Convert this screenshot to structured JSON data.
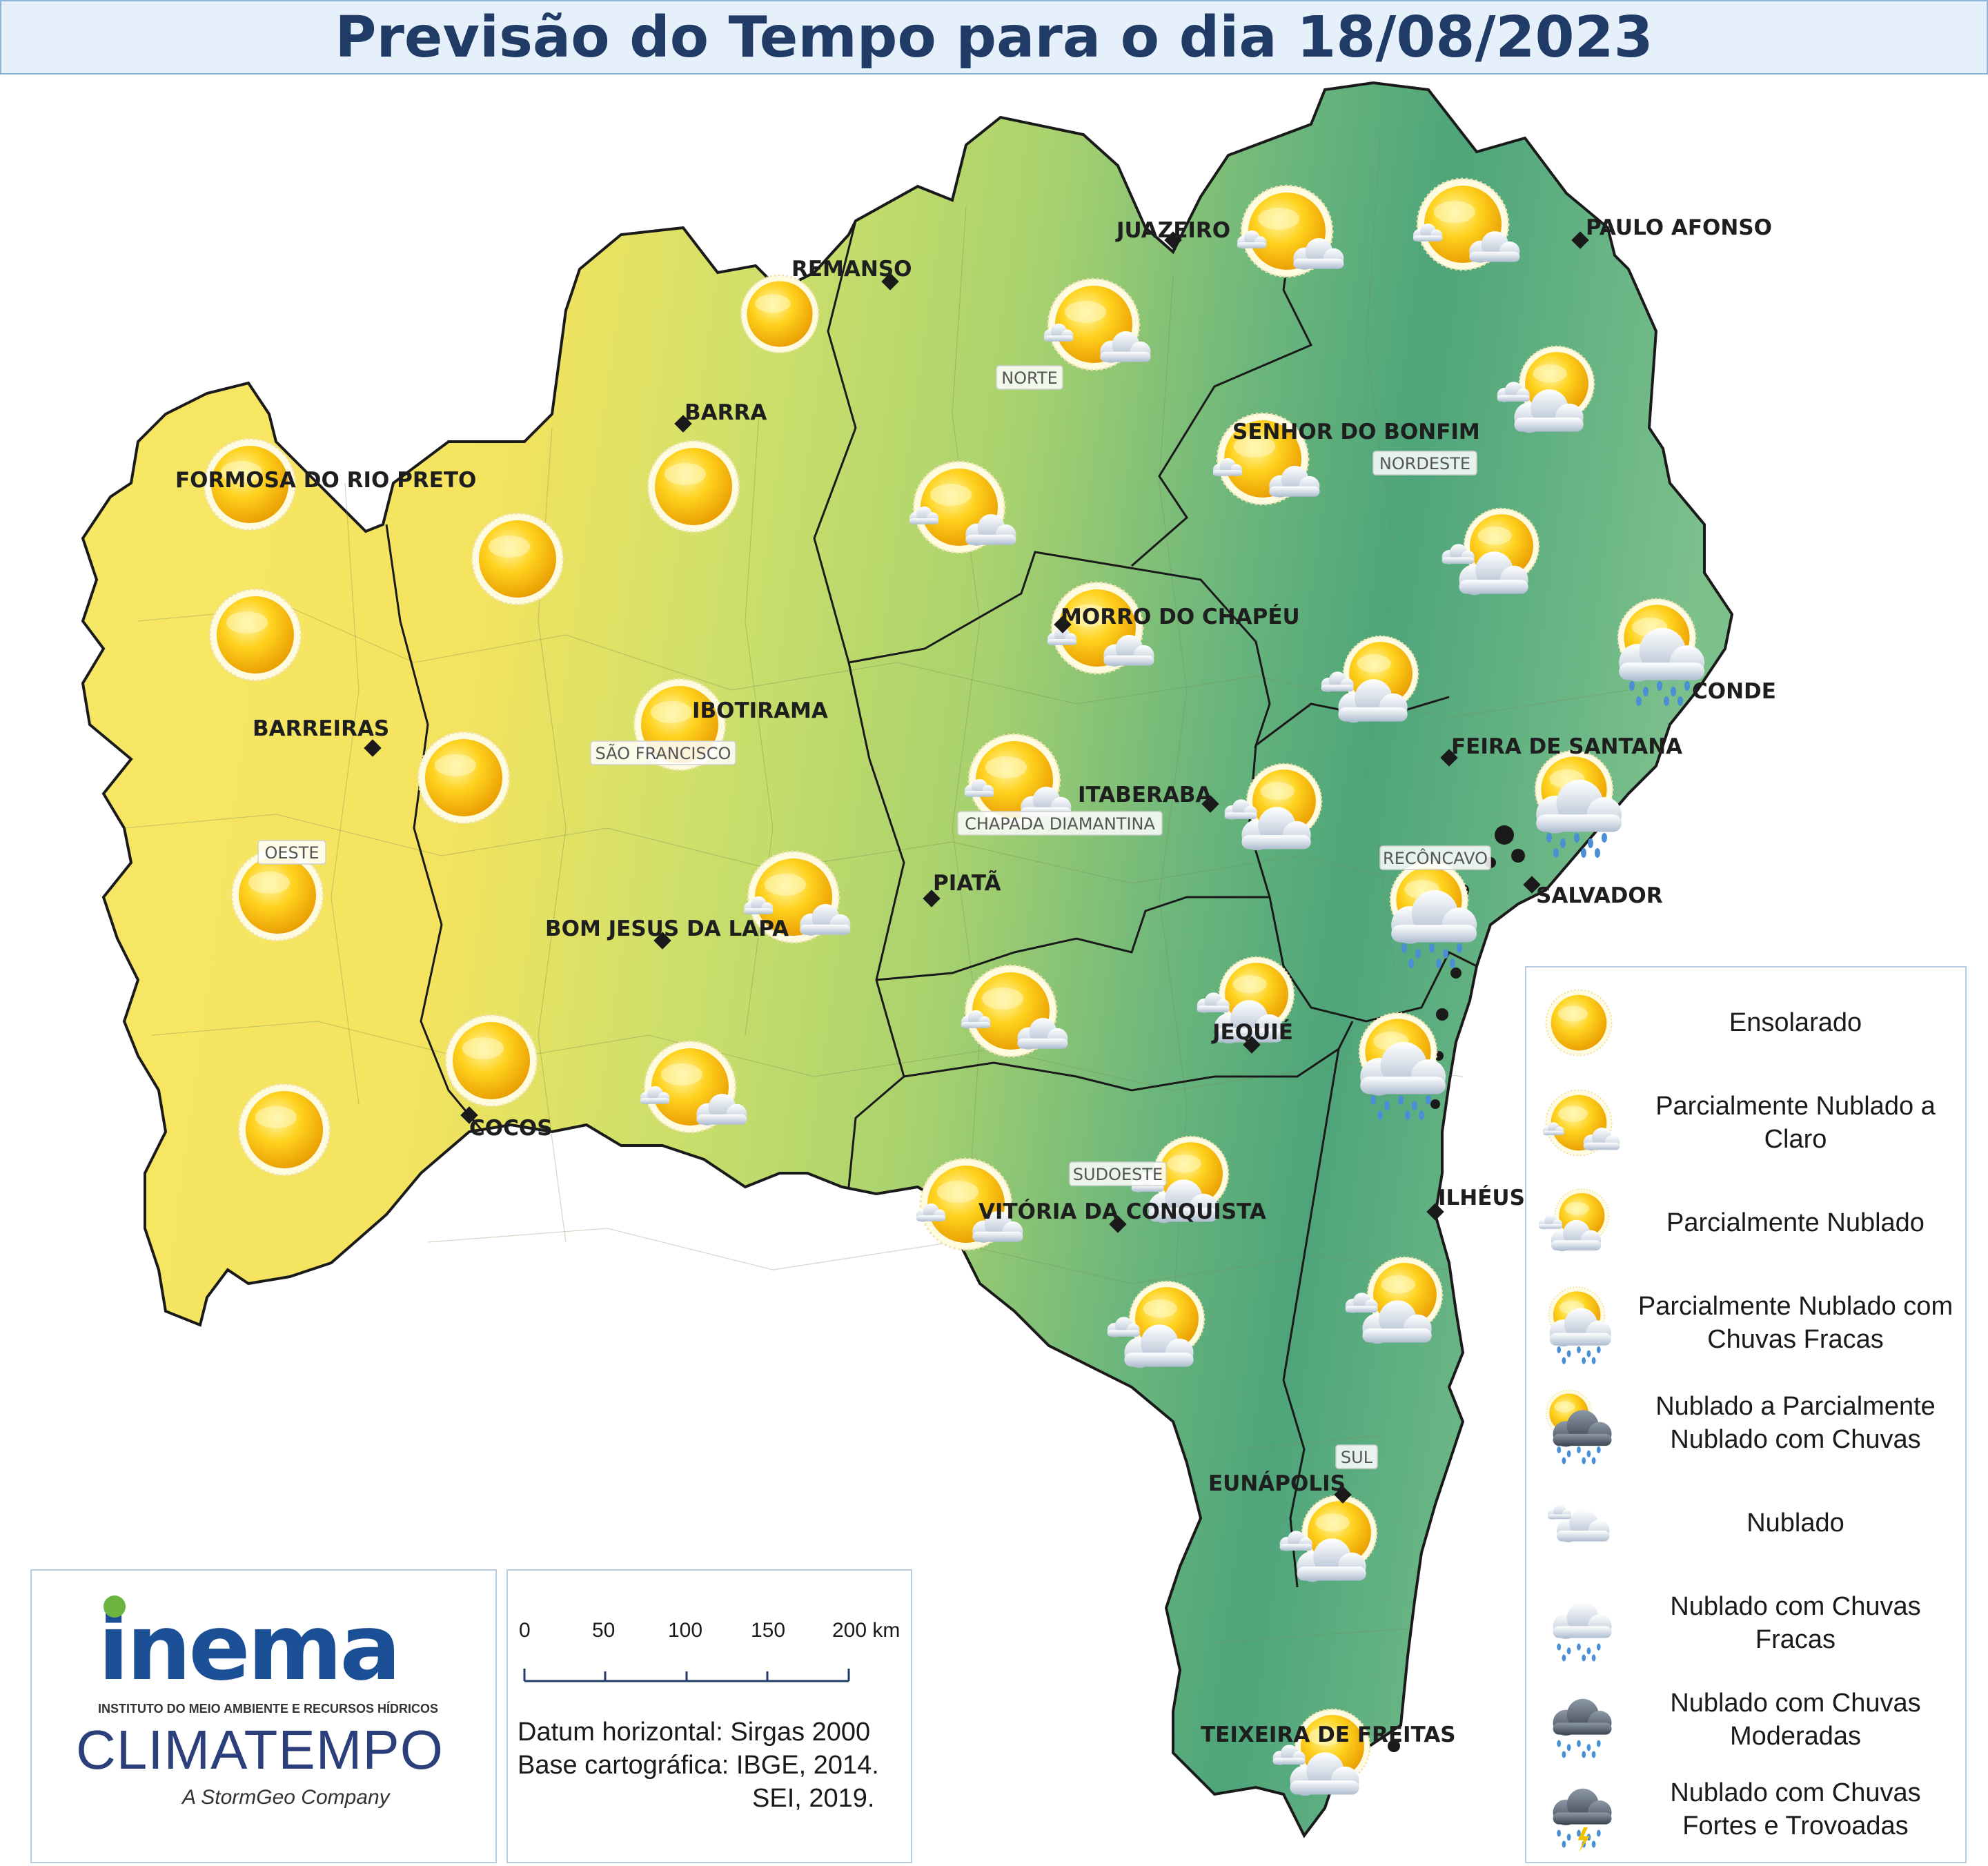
{
  "title": "Previsão do Tempo para o dia 18/08/2023",
  "cities": [
    {
      "name": "JUAZEIRO"
    },
    {
      "name": "REMANSO"
    },
    {
      "name": "PAULO AFONSO"
    },
    {
      "name": "BARRA"
    },
    {
      "name": "SENHOR DO BONFIM"
    },
    {
      "name": "FORMOSA DO RIO PRETO"
    },
    {
      "name": "MORRO DO CHAPÉU"
    },
    {
      "name": "IBOTIRAMA"
    },
    {
      "name": "CONDE"
    },
    {
      "name": "BARREIRAS"
    },
    {
      "name": "FEIRA DE SANTANA"
    },
    {
      "name": "ITABERABA"
    },
    {
      "name": "PIATÃ"
    },
    {
      "name": "SALVADOR"
    },
    {
      "name": "BOM JESUS DA LAPA"
    },
    {
      "name": "JEQUIÉ"
    },
    {
      "name": "COCOS"
    },
    {
      "name": "ILHÉUS"
    },
    {
      "name": "VITÓRIA DA CONQUISTA"
    },
    {
      "name": "EUNÁPOLIS"
    },
    {
      "name": "TEIXEIRA DE FREITAS"
    }
  ],
  "regions": [
    "NORTE",
    "NORDESTE",
    "SÃO FRANCISCO",
    "OESTE",
    "CHAPADA DIAMANTINA",
    "RECÔNCAVO",
    "SUDOESTE",
    "SUL"
  ],
  "legend": [
    {
      "label": "Ensolarado",
      "icon": "sun-icon"
    },
    {
      "label": "Parcialmente Nublado a Claro",
      "icon": "sun-small-cloud-icon"
    },
    {
      "label": "Parcialmente Nublado",
      "icon": "sun-cloud-icon"
    },
    {
      "label": "Parcialmente Nublado com Chuvas Fracas",
      "icon": "sun-cloud-light-rain-icon"
    },
    {
      "label": "Nublado a Parcialmente Nublado com Chuvas",
      "icon": "sun-dark-cloud-rain-icon"
    },
    {
      "label": "Nublado",
      "icon": "cloud-icon"
    },
    {
      "label": "Nublado com Chuvas Fracas",
      "icon": "cloud-light-rain-icon"
    },
    {
      "label": "Nublado com Chuvas Moderadas",
      "icon": "dark-cloud-rain-icon"
    },
    {
      "label": "Nublado com Chuvas Fortes e Trovoadas",
      "icon": "storm-cloud-icon"
    }
  ],
  "logos": {
    "inema": "inema",
    "inema_sub": "INSTITUTO DO MEIO AMBIENTE E RECURSOS HÍDRICOS",
    "climatempo": "CLIMATEMPO",
    "stormgeo": "A StormGeo Company"
  },
  "scale": {
    "ticks": [
      "0",
      "50",
      "100",
      "150",
      "200 km"
    ]
  },
  "datum_lines": [
    "Datum horizontal: Sirgas 2000",
    "Base cartográfica: IBGE, 2014.",
    "SEI, 2019."
  ],
  "colors": {
    "west": "#f7e866",
    "center": "#b8d96a",
    "east": "#5fae7e",
    "title": "#1f3b66"
  }
}
